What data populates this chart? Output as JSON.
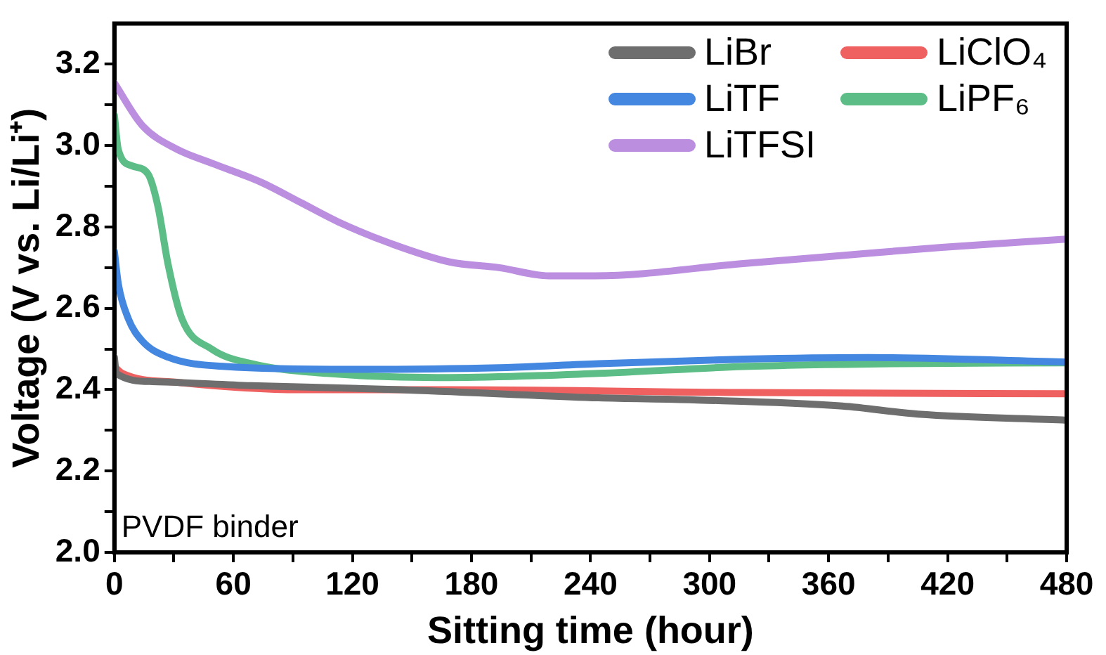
{
  "chart_data": {
    "type": "line",
    "xlabel": "Sitting time (hour)",
    "ylabel": "Voltage (V vs. Li/Li⁺)",
    "xlim": [
      0,
      480
    ],
    "xticks": [
      0,
      {
        "value": 30,
        "label": null
      },
      60,
      {
        "value": 90,
        "label": null
      },
      120,
      {
        "value": 150,
        "label": null
      },
      180,
      {
        "value": 210,
        "label": null
      },
      240,
      {
        "value": 270,
        "label": null
      },
      300,
      {
        "value": 330,
        "label": null
      },
      360,
      {
        "value": 390,
        "label": null
      },
      420,
      {
        "value": 450,
        "label": null
      },
      480
    ],
    "ylim": [
      2.0,
      3.3
    ],
    "yticks": [
      {
        "value": 2.0,
        "label": "2.0"
      },
      {
        "value": 2.1,
        "label": null
      },
      2.2,
      {
        "value": 2.3,
        "label": null
      },
      2.4,
      {
        "value": 2.5,
        "label": null
      },
      2.6,
      {
        "value": 2.7,
        "label": null
      },
      2.8,
      {
        "value": 2.9,
        "label": null
      },
      {
        "value": 3.0,
        "label": "3.0"
      },
      {
        "value": 3.1,
        "label": null
      },
      3.2
    ],
    "grid": false,
    "legend": "top right",
    "marker": "none",
    "line_style": "solid",
    "annotations": [
      "PVDF binder"
    ],
    "series": [
      {
        "name": "LiBr",
        "color": "#6e6e6e",
        "x": [
          0,
          1,
          19,
          69,
          144,
          244,
          292,
          367,
          405,
          480
        ],
        "values": [
          2.48,
          2.44,
          2.42,
          2.41,
          2.4,
          2.38,
          2.375,
          2.36,
          2.34,
          2.325
        ]
      },
      {
        "name": "LiClO₄",
        "color": "#ef6161",
        "x": [
          0,
          4,
          32,
          94,
          169,
          317,
          480
        ],
        "values": [
          2.457,
          2.44,
          2.418,
          2.4,
          2.4,
          2.393,
          2.39
        ]
      },
      {
        "name": "LiTF",
        "color": "#4487e0",
        "x": [
          0,
          2,
          7,
          14,
          27,
          56,
          119,
          194,
          244,
          317,
          380,
          480
        ],
        "values": [
          2.74,
          2.66,
          2.575,
          2.52,
          2.48,
          2.457,
          2.45,
          2.454,
          2.464,
          2.475,
          2.479,
          2.468
        ]
      },
      {
        "name": "LiPF₆",
        "color": "#5dbd86",
        "x": [
          0,
          2,
          9,
          17,
          22,
          27,
          34,
          49,
          69,
          107,
          169,
          244,
          317,
          392,
          480
        ],
        "values": [
          3.075,
          2.99,
          2.95,
          2.93,
          2.85,
          2.71,
          2.575,
          2.5,
          2.464,
          2.44,
          2.43,
          2.44,
          2.457,
          2.464,
          2.466
        ]
      },
      {
        "name": "LiTFSI",
        "color": "#bb8ee0",
        "x": [
          0,
          14,
          32,
          49,
          74,
          94,
          114,
          139,
          169,
          194,
          219,
          242,
          317,
          367,
          417,
          480
        ],
        "values": [
          3.154,
          3.05,
          2.99,
          2.957,
          2.91,
          2.86,
          2.81,
          2.76,
          2.714,
          2.7,
          2.68,
          2.68,
          2.71,
          2.73,
          2.75,
          2.77
        ]
      }
    ]
  }
}
